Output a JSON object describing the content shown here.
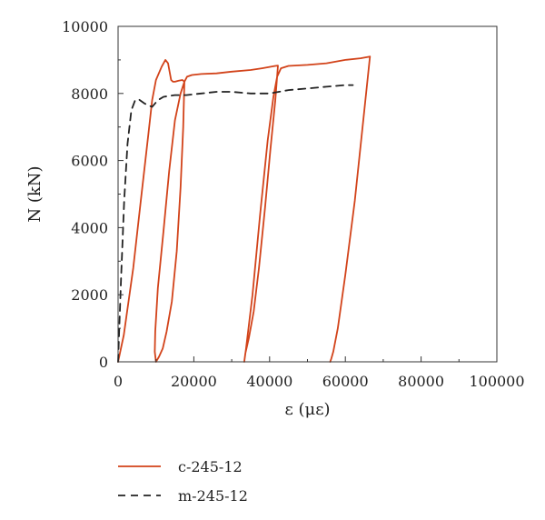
{
  "chart_data": {
    "type": "line",
    "title": "",
    "xlabel": "ε (με)",
    "ylabel": "N (kN)",
    "xlim": [
      0,
      100000
    ],
    "ylim": [
      0,
      10000
    ],
    "x_ticks": [
      0,
      20000,
      40000,
      60000,
      80000,
      100000
    ],
    "x_tick_labels": [
      "0",
      "20000",
      "40000",
      "60000",
      "80000",
      "100000"
    ],
    "y_ticks": [
      0,
      2000,
      4000,
      6000,
      8000,
      10000
    ],
    "y_tick_labels": [
      "0",
      "2000",
      "4000",
      "6000",
      "8000",
      "10000"
    ],
    "grid": false,
    "legend_position": "bottom",
    "series": [
      {
        "name": "c-245-12",
        "color": "#d2431a",
        "style": "solid",
        "x": [
          0,
          1500,
          4000,
          6000,
          8000,
          9000,
          10000,
          11500,
          12500,
          13200,
          14000,
          14500,
          15000,
          16000,
          17000,
          17500,
          17200,
          16500,
          15500,
          14200,
          12800,
          11800,
          10800,
          10000,
          9700,
          9800,
          10500,
          12000,
          13500,
          15000,
          16500,
          17500,
          18200,
          19500,
          22000,
          26000,
          30000,
          35000,
          38000,
          40500,
          41500,
          42200,
          41500,
          40200,
          38800,
          37200,
          35800,
          34500,
          33600,
          33300,
          33800,
          35500,
          37500,
          39500,
          41000,
          42000,
          43000,
          45000,
          50000,
          55000,
          60000,
          64000,
          66500,
          65000,
          62500,
          60000,
          58000,
          56800,
          56300,
          56000
        ],
        "y": [
          0,
          800,
          2800,
          4800,
          6800,
          7800,
          8400,
          8800,
          9000,
          8900,
          8400,
          8350,
          8350,
          8380,
          8400,
          8350,
          7000,
          5200,
          3300,
          1800,
          900,
          400,
          150,
          0,
          300,
          900,
          2200,
          3900,
          5700,
          7200,
          8000,
          8350,
          8500,
          8550,
          8580,
          8600,
          8650,
          8700,
          8750,
          8800,
          8820,
          8830,
          7800,
          6300,
          4600,
          2800,
          1500,
          700,
          250,
          0,
          400,
          2000,
          4400,
          6600,
          7900,
          8500,
          8750,
          8820,
          8850,
          8900,
          9000,
          9050,
          9100,
          7500,
          4800,
          2600,
          1000,
          300,
          100,
          0
        ]
      },
      {
        "name": "m-245-12",
        "color": "#222222",
        "style": "dashed",
        "x": [
          0,
          800,
          1600,
          2500,
          3500,
          4500,
          5500,
          7000,
          9000,
          10500,
          12000,
          15000,
          18000,
          22000,
          26000,
          30000,
          35000,
          40000,
          45000,
          50000,
          55000,
          60000,
          62000
        ],
        "y": [
          0,
          2500,
          4800,
          6500,
          7500,
          7800,
          7820,
          7700,
          7600,
          7800,
          7900,
          7950,
          7950,
          8000,
          8050,
          8050,
          8000,
          8000,
          8100,
          8150,
          8200,
          8250,
          8250
        ]
      }
    ]
  }
}
